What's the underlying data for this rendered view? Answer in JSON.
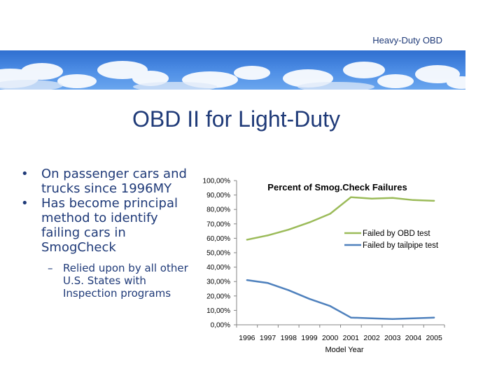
{
  "header": {
    "tag": "Heavy-Duty OBD"
  },
  "slide": {
    "title": "OBD II for Light-Duty"
  },
  "bullets": {
    "items": [
      "On passenger cars and trucks since 1996MY",
      "Has become principal method to identify failing cars in SmogCheck"
    ],
    "sub_items": [
      "Relied upon by all other U.S. States with Inspection programs"
    ],
    "bullet_glyph": "•",
    "sub_glyph": "–"
  },
  "chart_data": {
    "type": "line",
    "title": "Percent of Smog.Check Failures",
    "xlabel": "Model Year",
    "ylabel": "",
    "x": [
      1996,
      1997,
      1998,
      1999,
      2000,
      2001,
      2002,
      2003,
      2004,
      2005
    ],
    "xtick_labels": [
      "1996",
      "1997",
      "1998",
      "1999",
      "2000",
      "2001",
      "2002",
      "2003",
      "2004",
      "2005"
    ],
    "ylim": [
      0,
      100
    ],
    "yticks": [
      0,
      10,
      20,
      30,
      40,
      50,
      60,
      70,
      80,
      90,
      100
    ],
    "ytick_labels": [
      "0,00%",
      "10,00%",
      "20,00%",
      "30,00%",
      "40,00%",
      "50,00%",
      "60,00%",
      "70,00%",
      "80,00%",
      "90,00%",
      "100,00%"
    ],
    "grid": false,
    "legend_position": "right",
    "series": [
      {
        "name": "Failed by OBD test",
        "color": "#9bbb59",
        "values": [
          59,
          62,
          66,
          71,
          77,
          88.5,
          87.5,
          88,
          86.5,
          86
        ]
      },
      {
        "name": "Failed by tailpipe test",
        "color": "#4f81bd",
        "values": [
          31,
          29,
          24,
          18,
          13,
          5,
          4.5,
          4,
          4.5,
          5
        ]
      }
    ]
  }
}
